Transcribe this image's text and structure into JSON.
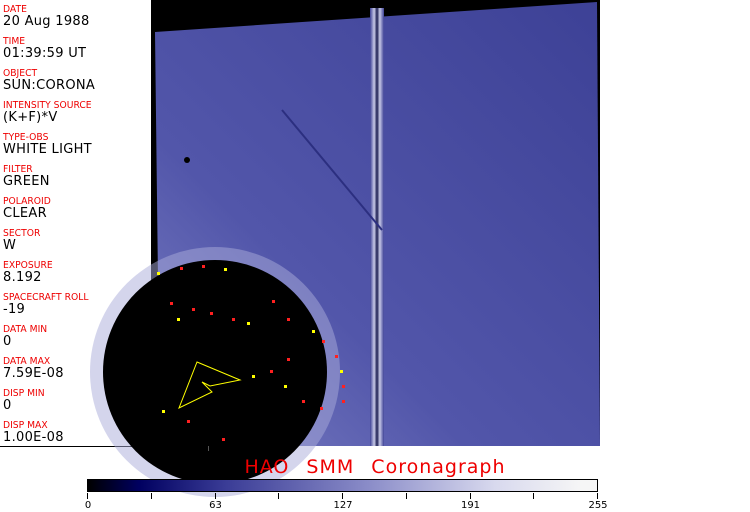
{
  "header_fields": [
    {
      "label": "DATE",
      "value": "20 Aug 1988"
    },
    {
      "label": "TIME",
      "value": "01:39:59 UT"
    },
    {
      "label": "OBJECT",
      "value": "SUN:CORONA"
    },
    {
      "label": "INTENSITY SOURCE",
      "value": "(K+F)*V"
    },
    {
      "label": "TYPE-OBS",
      "value": "WHITE LIGHT"
    },
    {
      "label": "FILTER",
      "value": "GREEN"
    },
    {
      "label": "POLAROID",
      "value": "CLEAR"
    },
    {
      "label": "SECTOR",
      "value": "W"
    },
    {
      "label": "EXPOSURE",
      "value": "8.192"
    },
    {
      "label": "SPACECRAFT ROLL",
      "value": "-19"
    },
    {
      "label": "DATA MIN",
      "value": "0"
    },
    {
      "label": "DATA MAX",
      "value": "7.59E-08"
    },
    {
      "label": "DISP MIN",
      "value": "0"
    },
    {
      "label": "DISP MAX",
      "value": "1.00E-08"
    }
  ],
  "title": "HAO  SMM Coronagraph",
  "colorbar": {
    "min": 0,
    "max": 255,
    "tick_labels": [
      "0",
      "63",
      "127",
      "191",
      "255"
    ],
    "colormap": [
      "#000000",
      "#000060",
      "#3a3c96",
      "#8a8cc8",
      "#d8d9ee",
      "#f6f6f6"
    ]
  },
  "colors": {
    "label": "#ee0000",
    "image_blue": "#4448a0"
  }
}
